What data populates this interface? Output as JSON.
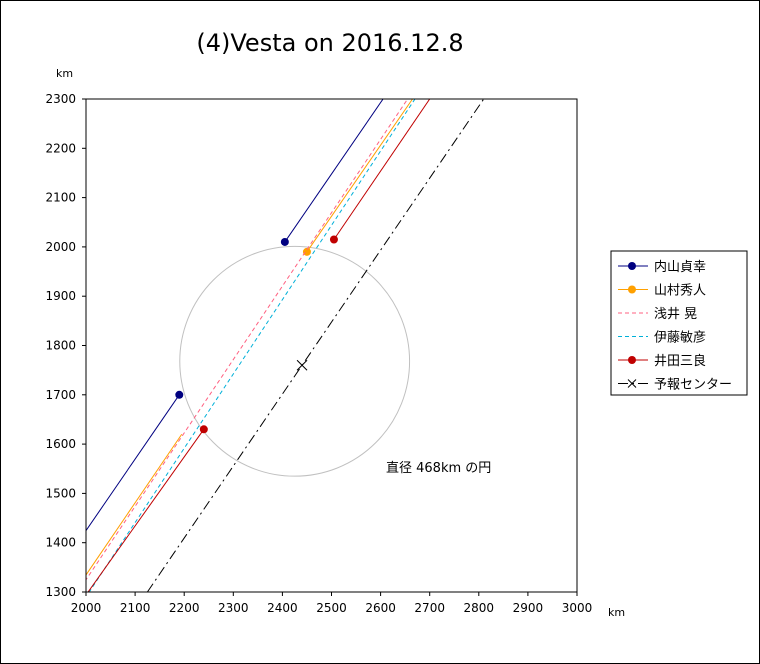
{
  "chart_data": {
    "type": "line",
    "title": "(4)Vesta on 2016.12.8",
    "xunit": "km",
    "yunit": "km",
    "xlim": [
      2000,
      3000
    ],
    "ylim": [
      1300,
      2300
    ],
    "xticks": [
      2000,
      2100,
      2200,
      2300,
      2400,
      2500,
      2600,
      2700,
      2800,
      2900,
      3000
    ],
    "yticks": [
      1300,
      1400,
      1500,
      1600,
      1700,
      1800,
      1900,
      2000,
      2100,
      2200,
      2300
    ],
    "grid": false,
    "legend_position": "right",
    "annotation": "直径 468km の円",
    "circle": {
      "center": [
        2425,
        1768
      ],
      "diameter": 468,
      "color": "#c0c0c0"
    },
    "series": [
      {
        "name": "内山貞幸",
        "color": "#000080",
        "style": "solid",
        "marker": true,
        "segments": [
          [
            [
              1990,
              1410
            ],
            [
              2190,
              1700
            ]
          ],
          [
            [
              2405,
              2010
            ],
            [
              2605,
              2300
            ]
          ]
        ],
        "points": [
          [
            2190,
            1700
          ],
          [
            2405,
            2010
          ]
        ]
      },
      {
        "name": "山村秀人",
        "color": "#ffa000",
        "style": "solid",
        "marker": true,
        "segments": [
          [
            [
              1990,
              1320
            ],
            [
              2195,
              1620
            ]
          ],
          [
            [
              2450,
              1990
            ],
            [
              2665,
              2300
            ]
          ]
        ],
        "points": [
          [
            2450,
            1990
          ]
        ]
      },
      {
        "name": "浅井 晃",
        "color": "#ff6080",
        "style": "dashed",
        "marker": false,
        "segments": [
          [
            [
              1990,
              1310
            ],
            [
              2655,
              2300
            ]
          ]
        ],
        "points": []
      },
      {
        "name": "伊藤敏彦",
        "color": "#00b0d8",
        "style": "dashed",
        "marker": false,
        "segments": [
          [
            [
              1990,
              1275
            ],
            [
              2670,
              2300
            ]
          ]
        ],
        "points": []
      },
      {
        "name": "井田三良",
        "color": "#c00000",
        "style": "solid",
        "marker": true,
        "segments": [
          [
            [
              1990,
              1280
            ],
            [
              2240,
              1630
            ]
          ],
          [
            [
              2505,
              2015
            ],
            [
              2700,
              2300
            ]
          ]
        ],
        "points": [
          [
            2240,
            1630
          ],
          [
            2505,
            2015
          ]
        ]
      },
      {
        "name": "予報センター",
        "color": "#000000",
        "style": "dashdot",
        "marker": "x",
        "segments": [
          [
            [
              2125,
              1300
            ],
            [
              2810,
              2300
            ]
          ]
        ],
        "points": [
          [
            2440,
            1760
          ]
        ]
      }
    ]
  }
}
